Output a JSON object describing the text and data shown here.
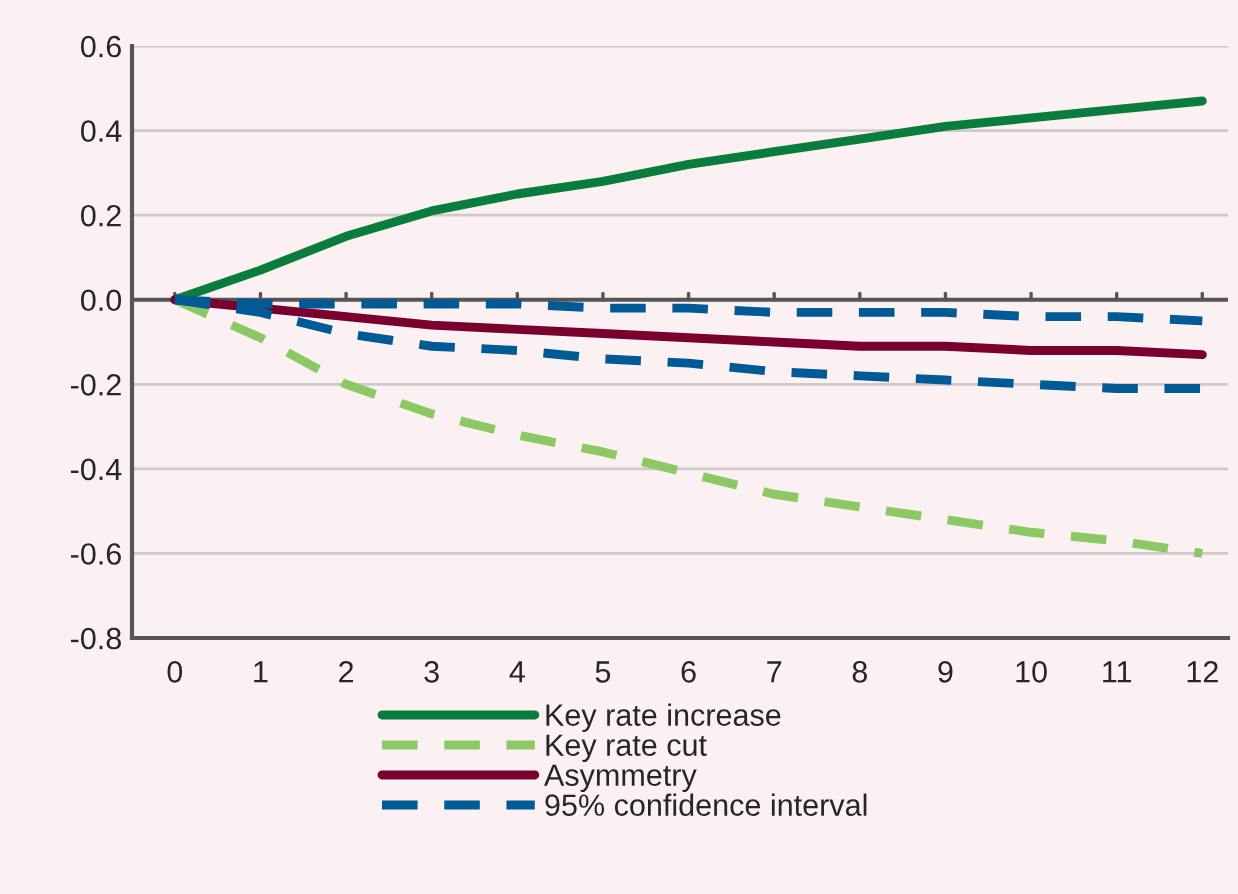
{
  "chart_data": {
    "type": "line",
    "x": [
      0,
      1,
      2,
      3,
      4,
      5,
      6,
      7,
      8,
      9,
      10,
      11,
      12
    ],
    "series": [
      {
        "name": "Key rate increase",
        "color": "#0a7d3e",
        "line_style": "solid",
        "values": [
          0,
          0.07,
          0.15,
          0.21,
          0.25,
          0.28,
          0.32,
          0.35,
          0.38,
          0.41,
          0.43,
          0.45,
          0.47
        ]
      },
      {
        "name": "Key rate cut",
        "color": "#8cc964",
        "line_style": "dashed",
        "values": [
          0,
          -0.09,
          -0.2,
          -0.27,
          -0.32,
          -0.36,
          -0.41,
          -0.46,
          -0.49,
          -0.52,
          -0.55,
          -0.57,
          -0.6
        ]
      },
      {
        "name": "Asymmetry",
        "color": "#7a0030",
        "line_style": "solid",
        "values": [
          0,
          -0.02,
          -0.04,
          -0.06,
          -0.07,
          -0.08,
          -0.09,
          -0.1,
          -0.11,
          -0.11,
          -0.12,
          -0.12,
          -0.13
        ]
      },
      {
        "name": "95% confidence interval",
        "color": "#005a96",
        "line_style": "dashed",
        "values": [
          0,
          -0.01,
          -0.01,
          -0.01,
          -0.01,
          -0.02,
          -0.02,
          -0.03,
          -0.03,
          -0.03,
          -0.04,
          -0.04,
          -0.05
        ]
      },
      {
        "color": "#005a96",
        "line_style": "dashed",
        "values": [
          0,
          -0.03,
          -0.08,
          -0.11,
          -0.12,
          -0.14,
          -0.15,
          -0.17,
          -0.18,
          -0.19,
          -0.2,
          -0.21,
          -0.21
        ]
      }
    ],
    "xlim": [
      -0.5,
      12.3
    ],
    "xticks": [
      0,
      1,
      2,
      3,
      4,
      5,
      6,
      7,
      8,
      9,
      10,
      11,
      12
    ],
    "ylim": [
      -0.8,
      0.6
    ],
    "yticks": [
      {
        "value": -0.8,
        "label": "-0.8"
      },
      {
        "value": -0.6,
        "label": "-0.6"
      },
      {
        "value": -0.4,
        "label": "-0.4"
      },
      {
        "value": -0.2,
        "label": "-0.2"
      },
      {
        "value": 0,
        "label": "0.0"
      },
      {
        "value": 0.2,
        "label": "0.2"
      },
      {
        "value": 0.4,
        "label": "0.4"
      },
      {
        "value": 0.6,
        "label": "0.6"
      }
    ],
    "ref_lines": [
      {
        "axis": "y",
        "value": 0,
        "color": "#555555"
      }
    ],
    "grid": "y",
    "legend": "bottom"
  }
}
